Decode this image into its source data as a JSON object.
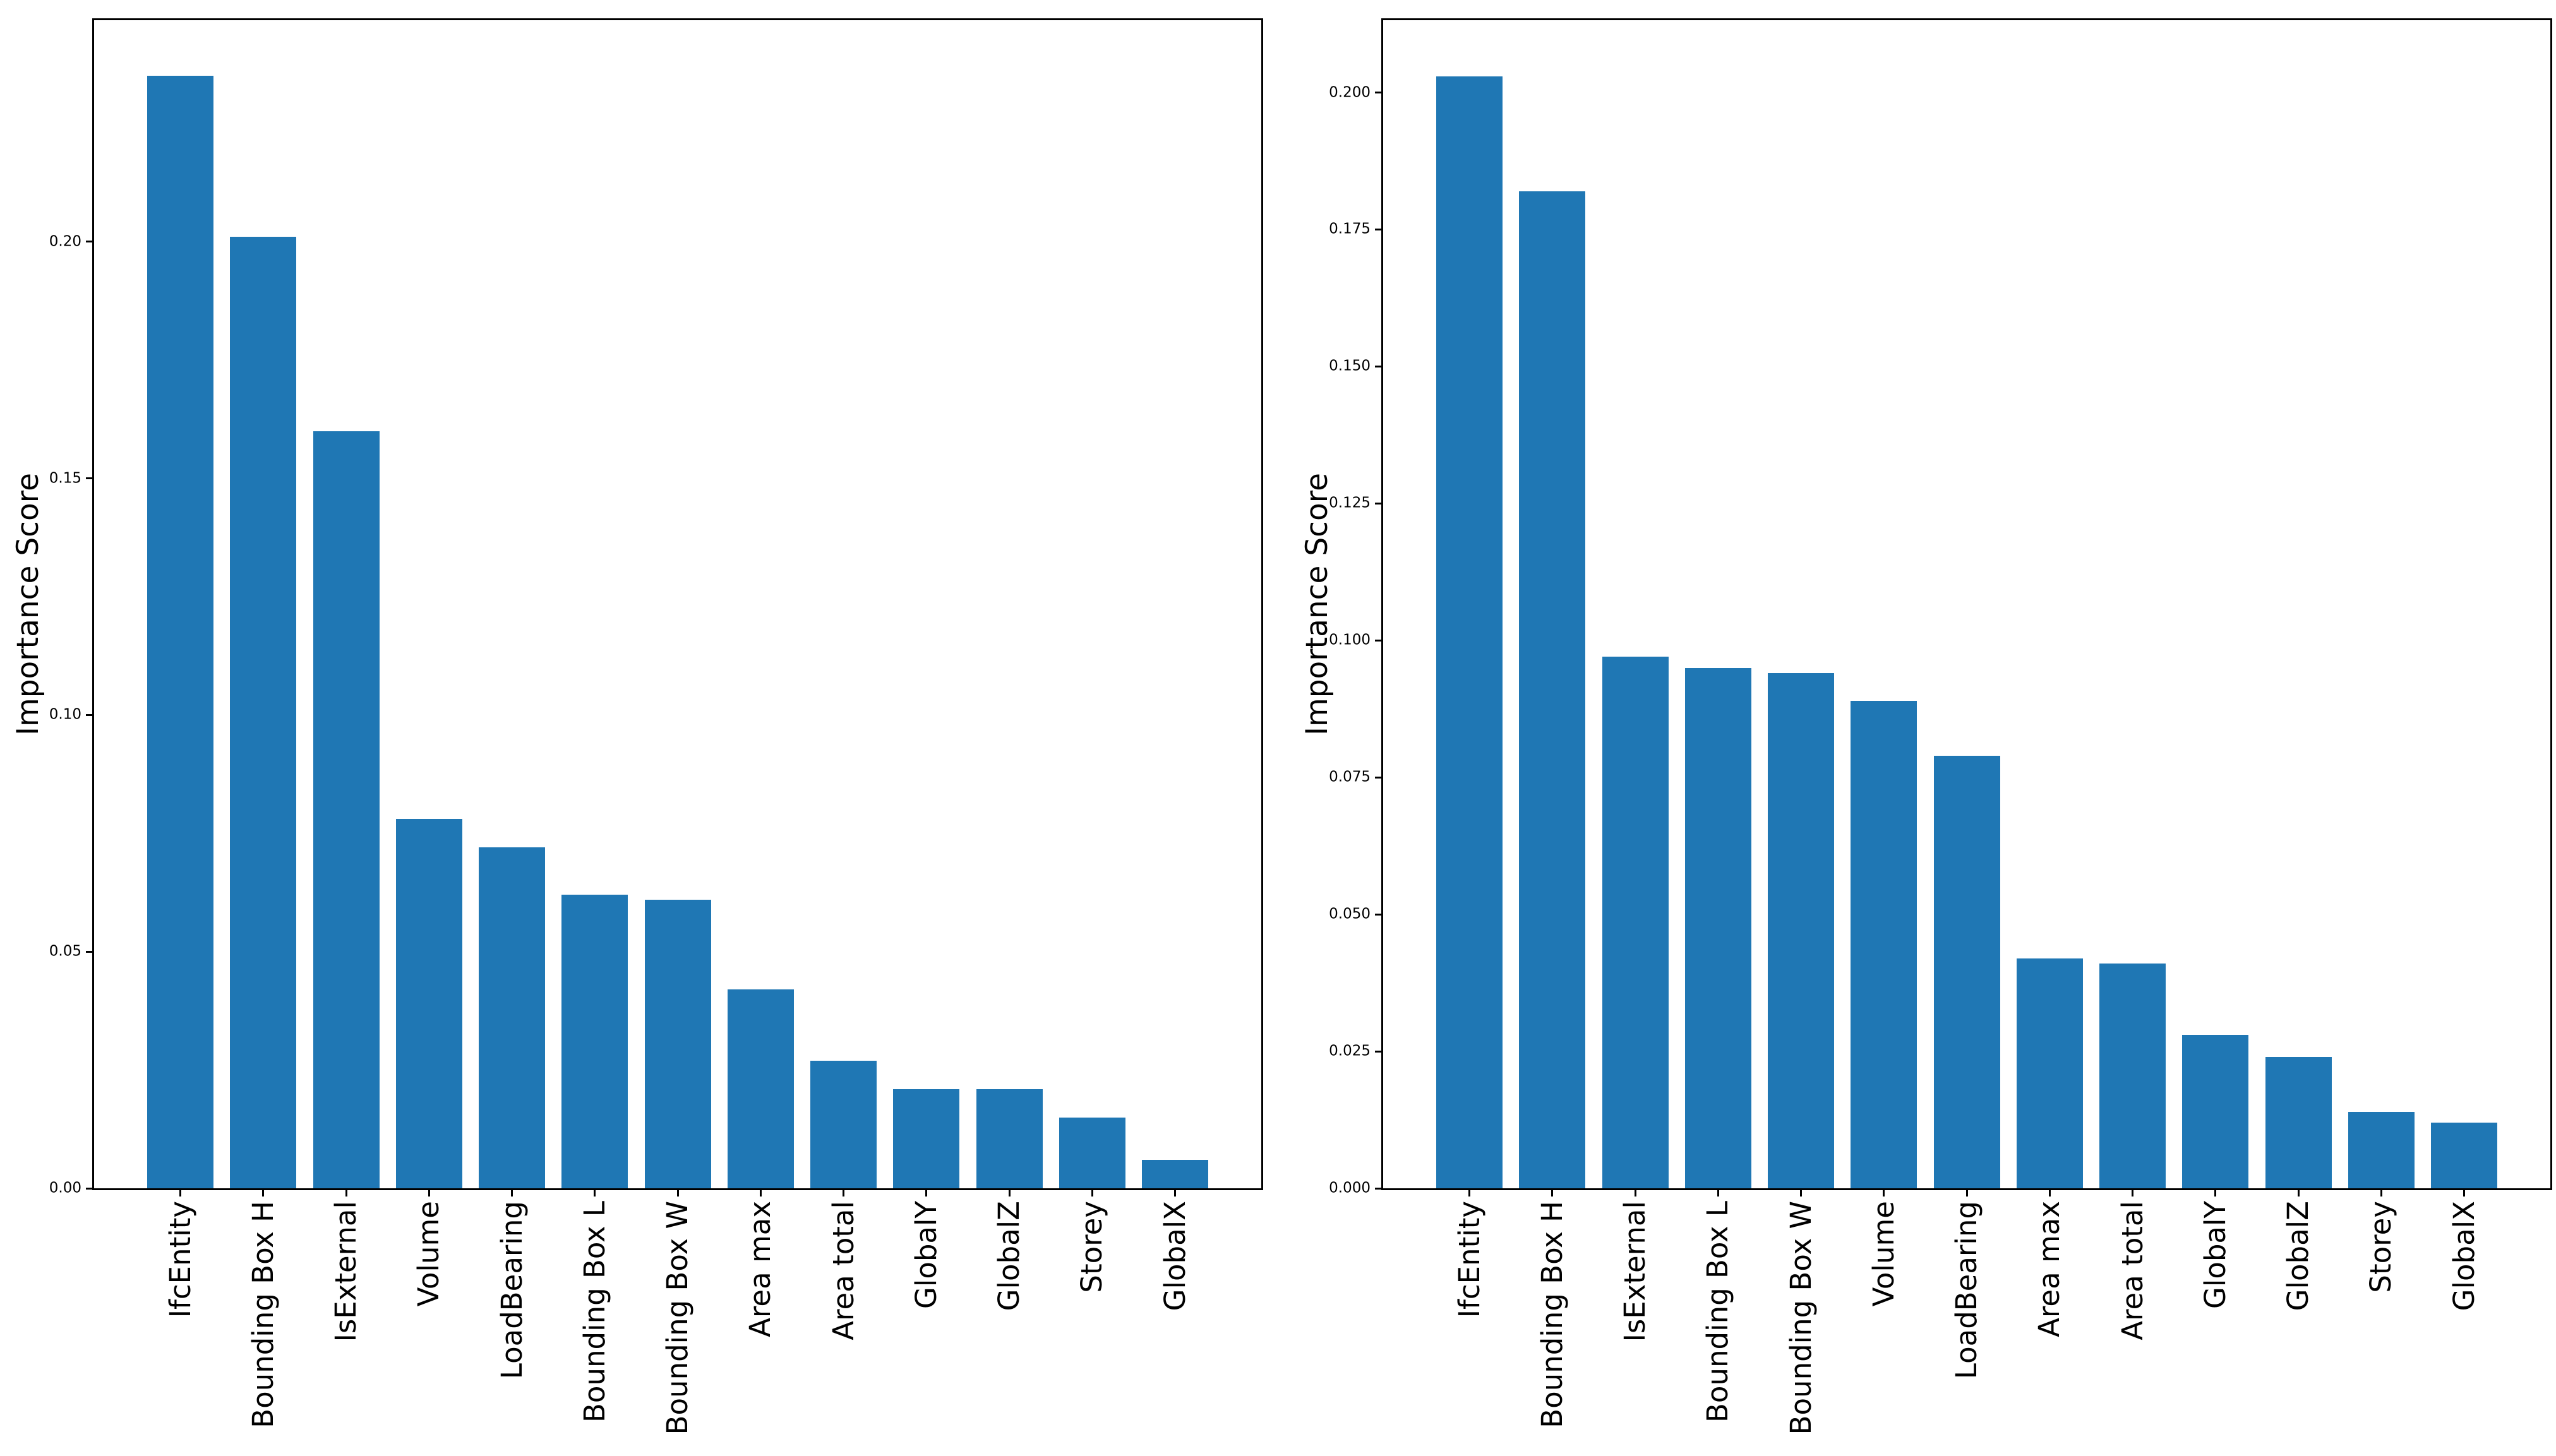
{
  "figure": {
    "background": "#ffffff",
    "text_color": "#000000",
    "bar_color": "#1f77b4"
  },
  "chart_data": [
    {
      "type": "bar",
      "title": "",
      "xlabel": "",
      "ylabel": "Importance Score",
      "grid": false,
      "legend": null,
      "bar_color": "#1f77b4",
      "bar_width_fraction": 0.8,
      "ylim": [
        0,
        0.2468
      ],
      "categories": [
        "IfcEntity",
        "Bounding Box H",
        "IsExternal",
        "Volume",
        "LoadBearing",
        "Bounding Box L",
        "Bounding Box W",
        "Area max",
        "Area total",
        "GlobalY",
        "GlobalZ",
        "Storey",
        "GlobalX"
      ],
      "values": [
        0.235,
        0.201,
        0.16,
        0.078,
        0.072,
        0.062,
        0.061,
        0.042,
        0.027,
        0.021,
        0.021,
        0.015,
        0.006
      ],
      "yticks": [
        {
          "value": 0.0,
          "label": "0.00"
        },
        {
          "value": 0.05,
          "label": "0.05"
        },
        {
          "value": 0.1,
          "label": "0.10"
        },
        {
          "value": 0.15,
          "label": "0.15"
        },
        {
          "value": 0.2,
          "label": "0.20"
        }
      ]
    },
    {
      "type": "bar",
      "title": "",
      "xlabel": "",
      "ylabel": "Importance Score",
      "grid": false,
      "legend": null,
      "bar_color": "#1f77b4",
      "bar_width_fraction": 0.8,
      "ylim": [
        0,
        0.2132
      ],
      "categories": [
        "IfcEntity",
        "Bounding Box H",
        "IsExternal",
        "Bounding Box L",
        "Bounding Box W",
        "Volume",
        "LoadBearing",
        "Area max",
        "Area total",
        "GlobalY",
        "GlobalZ",
        "Storey",
        "GlobalX"
      ],
      "values": [
        0.203,
        0.182,
        0.097,
        0.095,
        0.094,
        0.089,
        0.079,
        0.042,
        0.041,
        0.028,
        0.024,
        0.014,
        0.012
      ],
      "yticks": [
        {
          "value": 0.0,
          "label": "0.000"
        },
        {
          "value": 0.025,
          "label": "0.025"
        },
        {
          "value": 0.05,
          "label": "0.050"
        },
        {
          "value": 0.075,
          "label": "0.075"
        },
        {
          "value": 0.1,
          "label": "0.100"
        },
        {
          "value": 0.125,
          "label": "0.125"
        },
        {
          "value": 0.15,
          "label": "0.150"
        },
        {
          "value": 0.175,
          "label": "0.175"
        },
        {
          "value": 0.2,
          "label": "0.200"
        }
      ]
    }
  ]
}
